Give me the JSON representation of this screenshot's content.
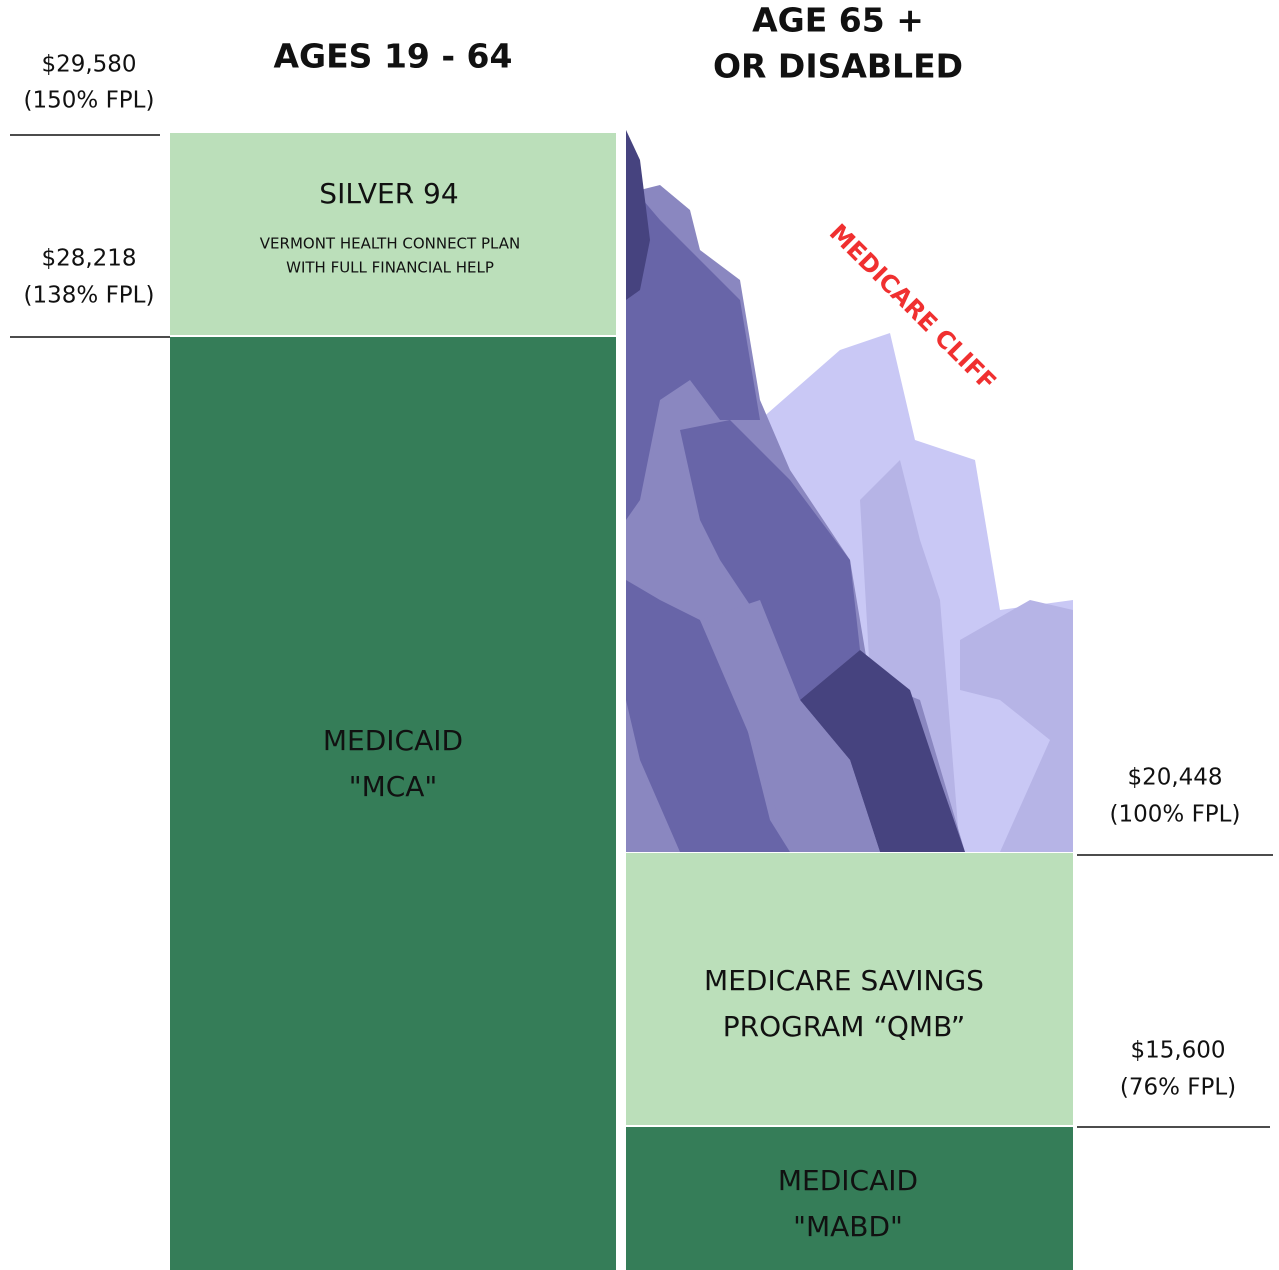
{
  "headings": {
    "left": "AGES 19 - 64",
    "right": [
      "AGE 65 +",
      "OR DISABLED"
    ]
  },
  "thresholds": [
    {
      "amount": "$29,580",
      "fpl": "(150% FPL)"
    },
    {
      "amount": "$28,218",
      "fpl": "(138% FPL)"
    },
    {
      "amount": "$20,448",
      "fpl": "(100% FPL)"
    },
    {
      "amount": "$15,600",
      "fpl": "(76% FPL)"
    }
  ],
  "blocks": {
    "silver": {
      "title": "SILVER 94",
      "subtitle": [
        "VERMONT HEALTH CONNECT PLAN",
        "WITH FULL FINANCIAL HELP"
      ]
    },
    "mca": [
      "MEDICAID",
      "\"MCA\""
    ],
    "qmb": [
      "MEDICARE SAVINGS",
      "PROGRAM “QMB”"
    ],
    "mabd": [
      "MEDICAID",
      "\"MABD\""
    ]
  },
  "cliff_label": "MEDICARE CLIFF"
}
